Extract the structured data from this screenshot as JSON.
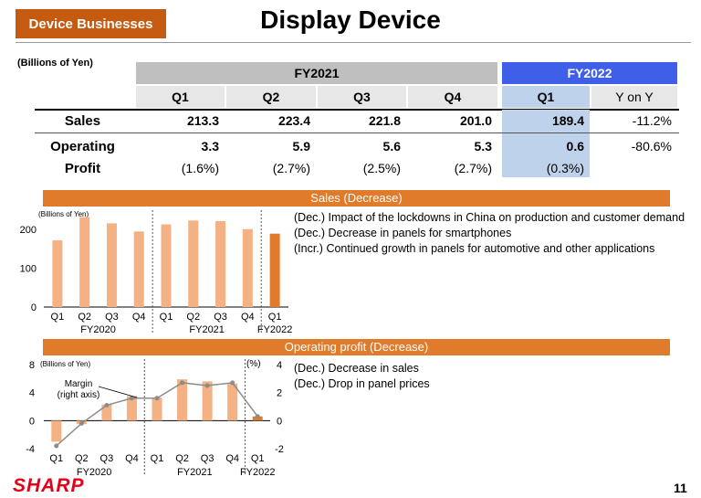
{
  "header": {
    "badge": "Device Businesses",
    "title": "Display Device",
    "page_number": "11",
    "logo": "SHARP"
  },
  "table": {
    "unit_label": "(Billions of Yen)",
    "fy2021_label": "FY2021",
    "fy2022_label": "FY2022",
    "columns": [
      "Q1",
      "Q2",
      "Q3",
      "Q4",
      "Q1",
      "Y on Y"
    ],
    "rows": {
      "sales": {
        "label": "Sales",
        "values": [
          "213.3",
          "223.4",
          "221.8",
          "201.0",
          "189.4",
          "-11.2%"
        ]
      },
      "operating": {
        "label": "Operating",
        "values": [
          "3.3",
          "5.9",
          "5.6",
          "5.3",
          "0.6",
          "-80.6%"
        ]
      },
      "profit": {
        "label": "Profit",
        "values": [
          "(1.6%)",
          "(2.7%)",
          "(2.5%)",
          "(2.7%)",
          "(0.3%)"
        ]
      }
    }
  },
  "sales_section": {
    "band": "Sales (Decrease)",
    "unit_label": "(Billions of Yen)",
    "bullets": [
      {
        "tag": "(Dec.)",
        "text": "Impact of the lockdowns in China on production and customer demand"
      },
      {
        "tag": "(Dec.)",
        "text": "Decrease in panels for smartphones"
      },
      {
        "tag": "(Incr.)",
        "text": "Continued growth in panels for automotive and other applications"
      }
    ]
  },
  "op_section": {
    "band": "Operating profit (Decrease)",
    "unit_label": "(Billions of Yen)",
    "right_unit": "(%)",
    "margin_note_1": "Margin",
    "margin_note_2": "(right axis)",
    "bullets": [
      {
        "tag": "(Dec.)",
        "text": "Decrease in sales"
      },
      {
        "tag": "(Dec.)",
        "text": "Drop in panel prices"
      }
    ]
  },
  "colors": {
    "bar": "#f4b183",
    "bar_latest": "#e07b2c",
    "line": "#8c8c8c",
    "badge": "#c55a11",
    "fy2022_header": "#3f5fe8"
  },
  "chart_data": [
    {
      "type": "bar",
      "categories": [
        "Q1",
        "Q2",
        "Q3",
        "Q4",
        "Q1",
        "Q2",
        "Q3",
        "Q4",
        "Q1"
      ],
      "groups": [
        {
          "label": "FY2020",
          "size": 4
        },
        {
          "label": "FY2021",
          "size": 4
        },
        {
          "label": "FY2022",
          "size": 1
        }
      ],
      "values": [
        172,
        232,
        216,
        195,
        213.3,
        223.4,
        221.8,
        201.0,
        189.4
      ],
      "yticks": [
        0,
        100,
        200
      ],
      "ylim": [
        0,
        250
      ],
      "grid": false
    },
    {
      "type": "bar",
      "categories": [
        "Q1",
        "Q2",
        "Q3",
        "Q4",
        "Q1",
        "Q2",
        "Q3",
        "Q4",
        "Q1"
      ],
      "groups": [
        {
          "label": "FY2020",
          "size": 4
        },
        {
          "label": "FY2021",
          "size": 4
        },
        {
          "label": "FY2022",
          "size": 1
        }
      ],
      "values": [
        -3.0,
        -0.5,
        2.3,
        3.5,
        3.3,
        5.9,
        5.6,
        5.3,
        0.6
      ],
      "yticks": [
        -4,
        0,
        4,
        8
      ],
      "ylim": [
        -4,
        8
      ],
      "series": [
        {
          "name": "Margin",
          "axis": "right",
          "values": [
            -1.8,
            -0.2,
            1.1,
            1.6,
            1.6,
            2.7,
            2.5,
            2.7,
            0.3
          ]
        }
      ],
      "y2ticks": [
        -2,
        0,
        2,
        4
      ],
      "y2lim": [
        -2,
        4
      ],
      "grid": false
    }
  ]
}
